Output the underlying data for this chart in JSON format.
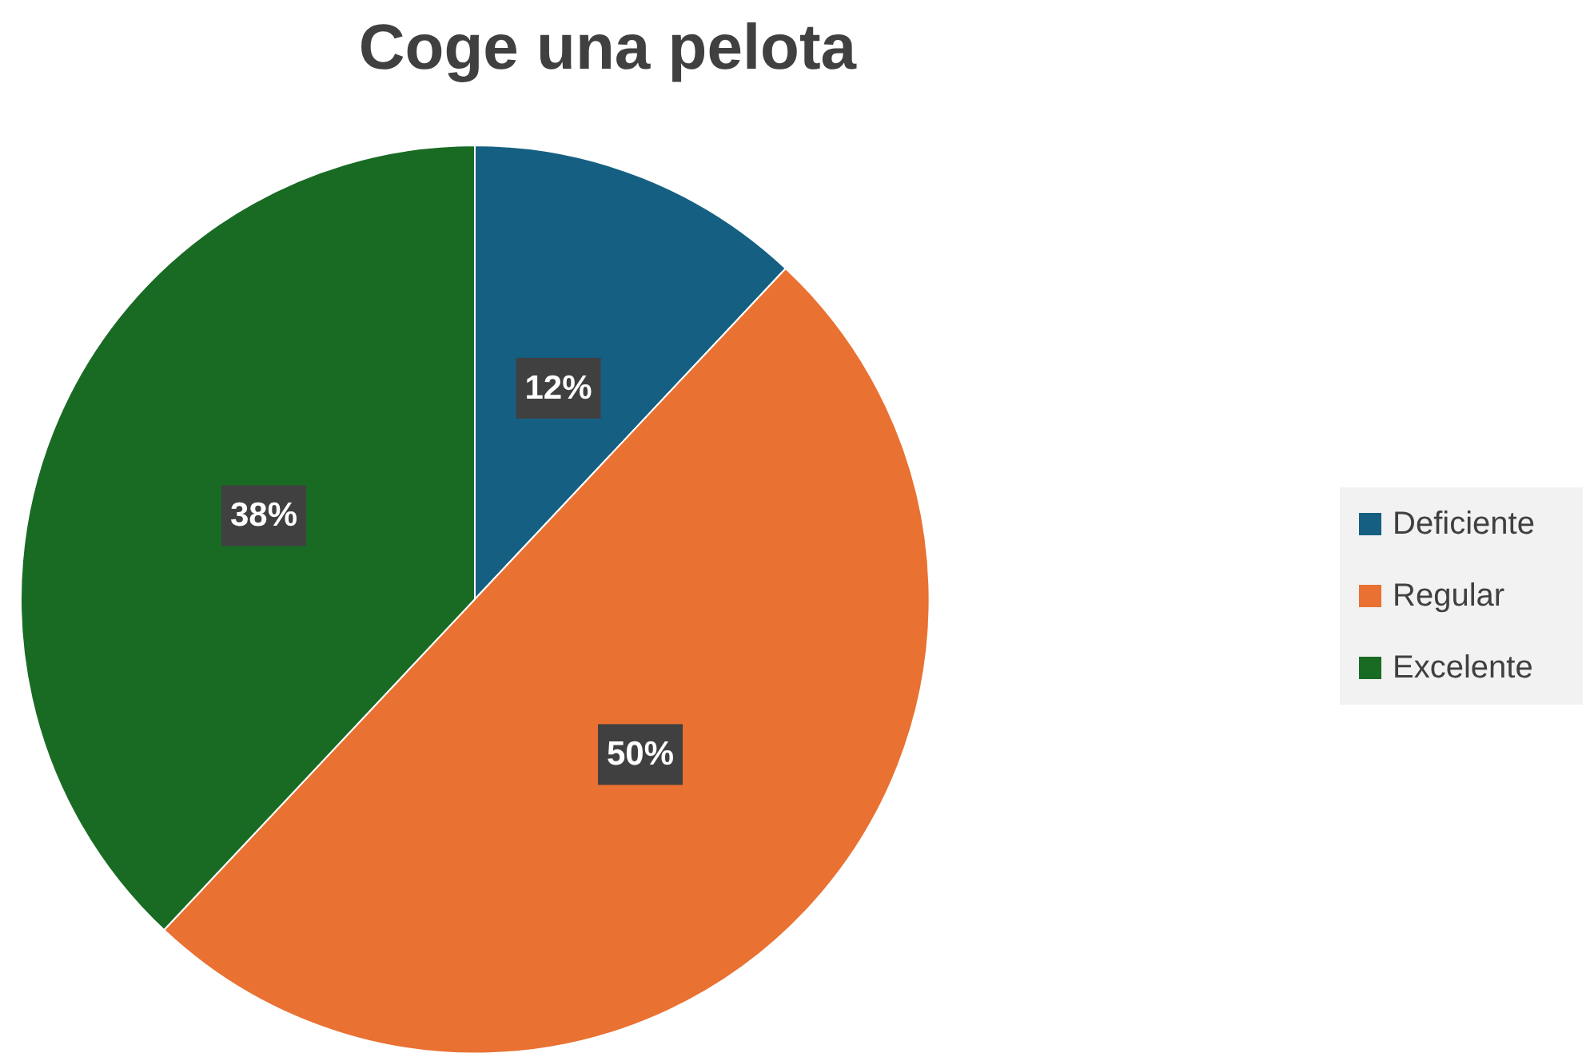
{
  "chart_data": {
    "type": "pie",
    "title": "Coge una pelota",
    "categories": [
      "Deficiente",
      "Regular",
      "Excelente"
    ],
    "values": [
      12,
      50,
      38
    ],
    "value_labels": [
      "12%",
      "50%",
      "38%"
    ],
    "colors": [
      "#156082",
      "#e97132",
      "#196b24"
    ],
    "legend": "right"
  }
}
